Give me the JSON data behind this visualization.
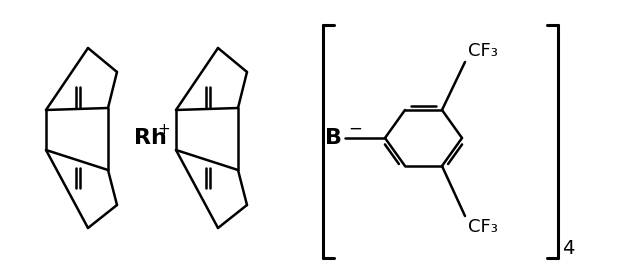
{
  "bg_color": "#ffffff",
  "line_color": "#000000",
  "line_width": 1.8,
  "text_color": "#000000",
  "rh_label": "Rh",
  "rh_charge": "+",
  "b_label": "B",
  "b_charge": "−",
  "cf3_top": "CF₃",
  "cf3_bottom": "CF₃",
  "bracket_subscript": "4",
  "font_size_main": 13,
  "font_size_sub": 9
}
